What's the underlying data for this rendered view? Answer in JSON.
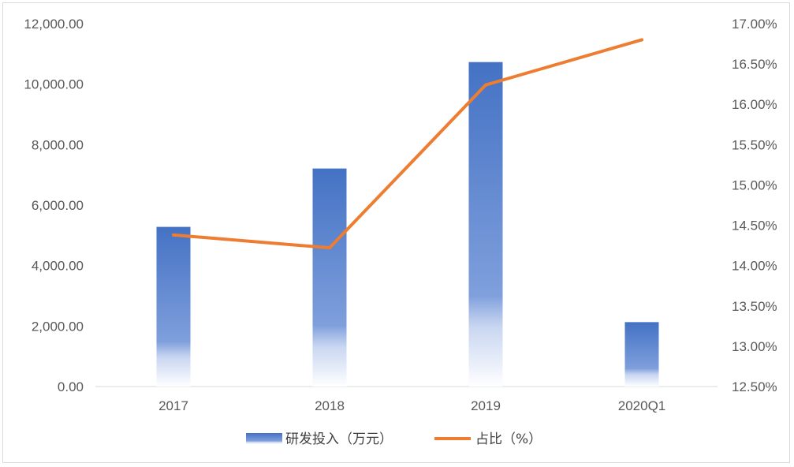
{
  "chart_data": {
    "type": "bar+line",
    "categories": [
      "2017",
      "2018",
      "2019",
      "2020Q1"
    ],
    "series": [
      {
        "name": "研发投入（万元）",
        "type": "bar",
        "axis": "left",
        "values": [
          5280,
          7210,
          10730,
          2130
        ]
      },
      {
        "name": "占比（%）",
        "type": "line",
        "axis": "right",
        "values": [
          14.38,
          14.22,
          16.24,
          16.8
        ]
      }
    ],
    "y_left": {
      "ylim": [
        0,
        12000
      ],
      "ticks": [
        0,
        2000,
        4000,
        6000,
        8000,
        10000,
        12000
      ],
      "tick_labels": [
        "0.00",
        "2,000.00",
        "4,000.00",
        "6,000.00",
        "8,000.00",
        "10,000.00",
        "12,000.00"
      ]
    },
    "y_right": {
      "ylim": [
        12.5,
        17.0
      ],
      "ticks": [
        12.5,
        13.0,
        13.5,
        14.0,
        14.5,
        15.0,
        15.5,
        16.0,
        16.5,
        17.0
      ],
      "tick_labels": [
        "12.50%",
        "13.00%",
        "13.50%",
        "14.00%",
        "14.50%",
        "15.00%",
        "15.50%",
        "16.00%",
        "16.50%",
        "17.00%"
      ]
    },
    "grid": false,
    "legend_position": "bottom",
    "colors": {
      "bar": "#4472c4",
      "line": "#ed7d31",
      "axis": "#d9d9d9",
      "text": "#595959"
    }
  }
}
